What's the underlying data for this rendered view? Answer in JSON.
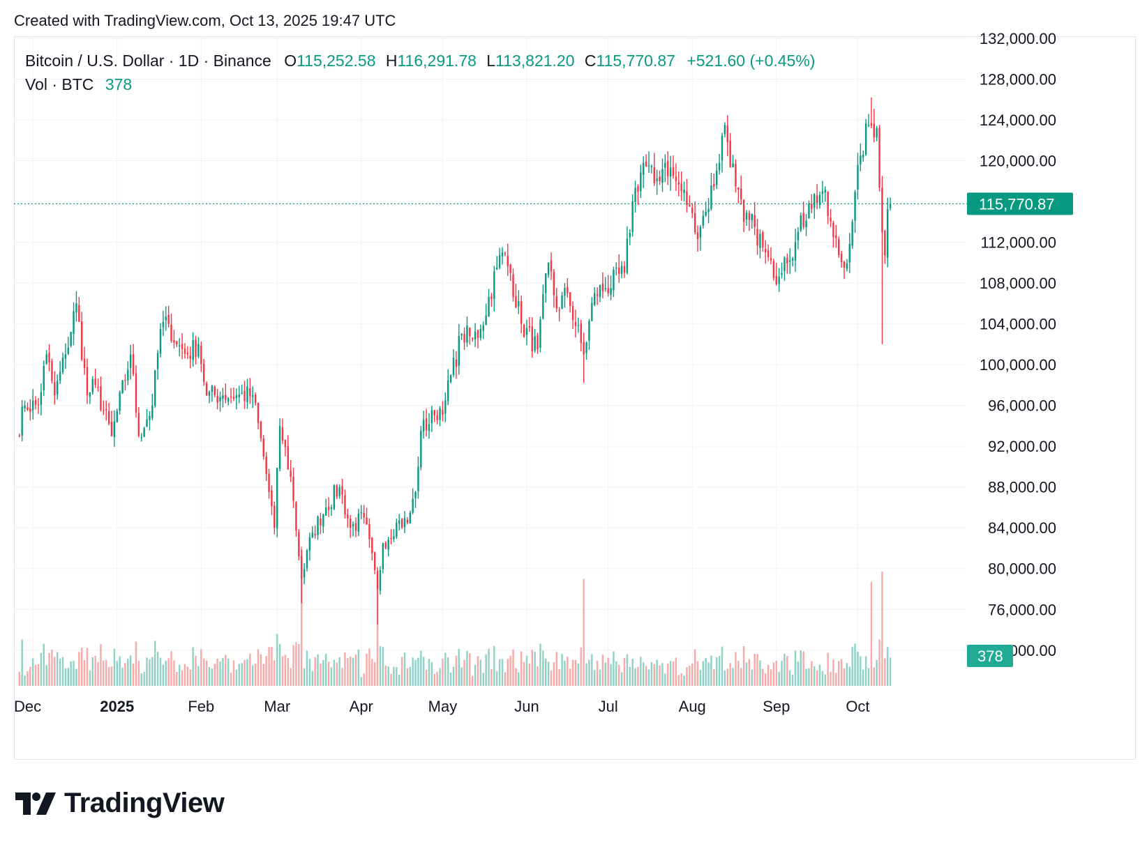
{
  "header": {
    "created_text": "Created with TradingView.com, Oct 13, 2025 19:47 UTC"
  },
  "legend": {
    "symbol": "Bitcoin / U.S. Dollar · 1D · Binance",
    "open_label": "O",
    "open": "115,252.58",
    "high_label": "H",
    "high": "116,291.78",
    "low_label": "L",
    "low": "113,821.20",
    "close_label": "C",
    "close": "115,770.87",
    "change": "+521.60 (+0.45%)",
    "vol_label": "Vol · BTC",
    "vol": "378"
  },
  "colors": {
    "up": "#089981",
    "down": "#f23645",
    "up_vol": "#8fd1c5",
    "down_vol": "#f7a9a7",
    "grid": "#f0f3fa",
    "text": "#131722"
  },
  "last_price_label": "115,770.87",
  "last_volume_label": "378",
  "brand": {
    "name": "TradingView",
    "icon": "tradingview-logo-icon"
  },
  "chart_data": {
    "type": "candlestick",
    "symbol": "BTCUSD",
    "interval": "1D",
    "y_axis": {
      "ticks": [
        132000,
        128000,
        124000,
        120000,
        116000,
        112000,
        108000,
        104000,
        100000,
        96000,
        92000,
        88000,
        84000,
        80000,
        76000,
        72000
      ],
      "tick_labels": [
        "132,000.00",
        "128,000.00",
        "124,000.00",
        "120,000.00",
        "116,000.00",
        "112,000.00",
        "108,000.00",
        "104,000.00",
        "100,000.00",
        "96,000.00",
        "92,000.00",
        "88,000.00",
        "84,000.00",
        "80,000.00",
        "76,000.00",
        "72,000.00"
      ],
      "range": [
        68500,
        132200
      ]
    },
    "x_axis": {
      "ticks": [
        "Dec",
        "2025",
        "Feb",
        "Mar",
        "Apr",
        "May",
        "Jun",
        "Jul",
        "Aug",
        "Sep",
        "Oct"
      ],
      "range": [
        "2024-11-24",
        "2025-11-10"
      ]
    },
    "last_price": 115770.87,
    "grid": true,
    "anchors": [
      [
        "2024-11-25",
        93000
      ],
      [
        "2024-11-28",
        96000
      ],
      [
        "2024-12-03",
        96000
      ],
      [
        "2024-12-06",
        101000
      ],
      [
        "2024-12-09",
        97000
      ],
      [
        "2024-12-13",
        101000
      ],
      [
        "2024-12-17",
        106000
      ],
      [
        "2024-12-21",
        97000
      ],
      [
        "2024-12-24",
        98000
      ],
      [
        "2024-12-30",
        93000
      ],
      [
        "2025-01-06",
        101000
      ],
      [
        "2025-01-09",
        93000
      ],
      [
        "2025-01-14",
        96000
      ],
      [
        "2025-01-17",
        103500
      ],
      [
        "2025-01-20",
        104000
      ],
      [
        "2025-01-23",
        102000
      ],
      [
        "2025-01-27",
        101000
      ],
      [
        "2025-01-31",
        102000
      ],
      [
        "2025-02-03",
        97000
      ],
      [
        "2025-02-09",
        97000
      ],
      [
        "2025-02-14",
        97000
      ],
      [
        "2025-02-20",
        97000
      ],
      [
        "2025-02-24",
        91000
      ],
      [
        "2025-02-28",
        84000
      ],
      [
        "2025-03-02",
        94000
      ],
      [
        "2025-03-06",
        89000
      ],
      [
        "2025-03-10",
        79000
      ],
      [
        "2025-03-14",
        83500
      ],
      [
        "2025-03-19",
        86000
      ],
      [
        "2025-03-24",
        88000
      ],
      [
        "2025-03-28",
        84000
      ],
      [
        "2025-04-02",
        85000
      ],
      [
        "2025-04-07",
        78000
      ],
      [
        "2025-04-09",
        82500
      ],
      [
        "2025-04-14",
        84500
      ],
      [
        "2025-04-18",
        84500
      ],
      [
        "2025-04-21",
        87500
      ],
      [
        "2025-04-23",
        93500
      ],
      [
        "2025-04-28",
        95000
      ],
      [
        "2025-05-02",
        96500
      ],
      [
        "2025-05-08",
        103000
      ],
      [
        "2025-05-12",
        102500
      ],
      [
        "2025-05-15",
        103500
      ],
      [
        "2025-05-21",
        109500
      ],
      [
        "2025-05-23",
        111000
      ],
      [
        "2025-05-26",
        109000
      ],
      [
        "2025-05-30",
        104000
      ],
      [
        "2025-06-05",
        101500
      ],
      [
        "2025-06-09",
        110000
      ],
      [
        "2025-06-12",
        105500
      ],
      [
        "2025-06-16",
        107000
      ],
      [
        "2025-06-22",
        101000
      ],
      [
        "2025-06-26",
        107000
      ],
      [
        "2025-06-30",
        107500
      ],
      [
        "2025-07-07",
        109000
      ],
      [
        "2025-07-10",
        116000
      ],
      [
        "2025-07-14",
        119800
      ],
      [
        "2025-07-18",
        117800
      ],
      [
        "2025-07-22",
        119800
      ],
      [
        "2025-07-26",
        118000
      ],
      [
        "2025-07-31",
        115500
      ],
      [
        "2025-08-02",
        113000
      ],
      [
        "2025-08-06",
        115000
      ],
      [
        "2025-08-10",
        119000
      ],
      [
        "2025-08-13",
        123500
      ],
      [
        "2025-08-17",
        117500
      ],
      [
        "2025-08-20",
        114000
      ],
      [
        "2025-08-24",
        113500
      ],
      [
        "2025-08-27",
        111500
      ],
      [
        "2025-08-31",
        108500
      ],
      [
        "2025-09-04",
        110500
      ],
      [
        "2025-09-08",
        112000
      ],
      [
        "2025-09-13",
        115800
      ],
      [
        "2025-09-18",
        117000
      ],
      [
        "2025-09-22",
        112500
      ],
      [
        "2025-09-26",
        109500
      ],
      [
        "2025-09-29",
        114000
      ],
      [
        "2025-10-02",
        120500
      ],
      [
        "2025-10-05",
        123500
      ],
      [
        "2025-10-08",
        123200
      ],
      [
        "2025-10-10",
        113000
      ],
      [
        "2025-10-11",
        110700
      ],
      [
        "2025-10-12",
        115250
      ],
      [
        "2025-10-13",
        115770.87
      ]
    ],
    "notable_wicks": [
      [
        "2025-04-07",
        74500
      ],
      [
        "2025-06-22",
        98200
      ],
      [
        "2025-10-06",
        126200
      ],
      [
        "2025-10-10",
        102000
      ],
      [
        "2025-03-10",
        76600
      ]
    ]
  }
}
